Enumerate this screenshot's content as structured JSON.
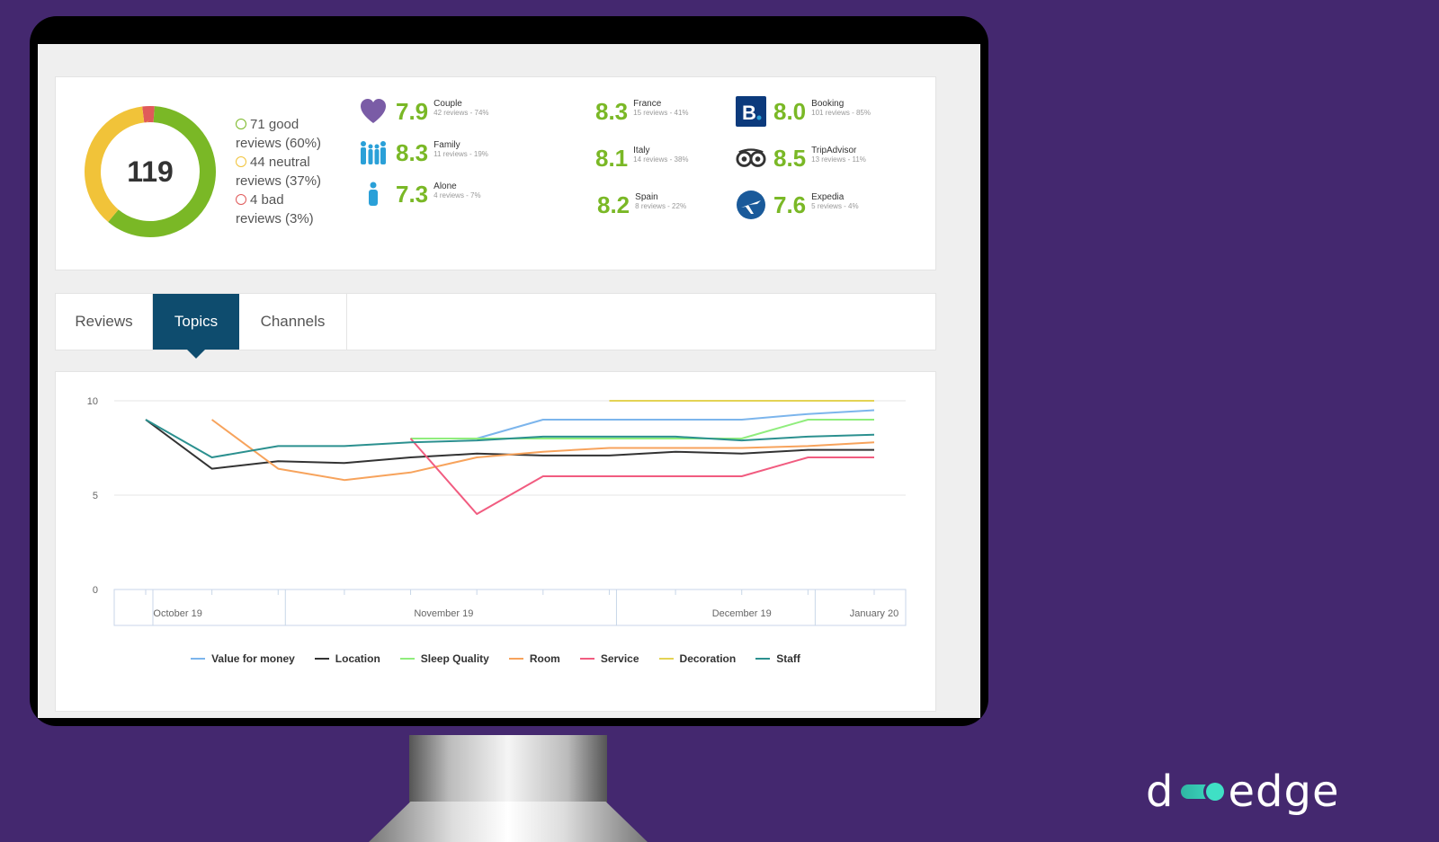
{
  "summary": {
    "total": "119",
    "breakdown": [
      {
        "count": "71",
        "word": "good",
        "rest": "reviews (60%)",
        "kind": "good"
      },
      {
        "count": "44",
        "word": "neutral",
        "rest": "reviews (37%)",
        "kind": "neutral"
      },
      {
        "count": "4",
        "word": "bad",
        "rest": "reviews (3%)",
        "kind": "bad"
      }
    ],
    "donut": {
      "good_pct": 60,
      "neutral_pct": 37,
      "bad_pct": 3,
      "colors": {
        "good": "#7ab826",
        "neutral": "#f1c339",
        "bad": "#e05a5a"
      }
    },
    "segments": [
      {
        "score": "7.9",
        "name": "Couple",
        "sub": "42 reviews - 74%",
        "icon": "heart-icon"
      },
      {
        "score": "8.3",
        "name": "Family",
        "sub": "11 reviews - 19%",
        "icon": "family-icon"
      },
      {
        "score": "7.3",
        "name": "Alone",
        "sub": "4 reviews - 7%",
        "icon": "person-icon"
      }
    ],
    "countries": [
      {
        "score": "8.3",
        "name": "France",
        "sub": "15 reviews - 41%"
      },
      {
        "score": "8.1",
        "name": "Italy",
        "sub": "14 reviews - 38%"
      },
      {
        "score": "8.2",
        "name": "Spain",
        "sub": "8 reviews - 22%"
      }
    ],
    "channels": [
      {
        "score": "8.0",
        "name": "Booking",
        "sub": "101 reviews - 85%",
        "icon": "booking-icon"
      },
      {
        "score": "8.5",
        "name": "TripAdvisor",
        "sub": "13 reviews - 11%",
        "icon": "tripadvisor-icon"
      },
      {
        "score": "7.6",
        "name": "Expedia",
        "sub": "5 reviews - 4%",
        "icon": "expedia-icon"
      }
    ]
  },
  "tabs": [
    {
      "label": "Reviews",
      "active": false
    },
    {
      "label": "Topics",
      "active": true
    },
    {
      "label": "Channels",
      "active": false
    }
  ],
  "chart_data": {
    "type": "line",
    "x": [
      "Oct 5",
      "Oct 15",
      "Oct 25",
      "Nov 4",
      "Nov 14",
      "Nov 24",
      "Dec 4",
      "Dec 14",
      "Dec 24",
      "Jan 3",
      "Jan 13",
      "Jan 23"
    ],
    "x_tick_labels": [
      "October 19",
      "November 19",
      "December 19",
      "January 20"
    ],
    "ylim": [
      0,
      10
    ],
    "yticks": [
      0,
      5,
      10
    ],
    "grid": true,
    "legend": "bottom",
    "series": [
      {
        "name": "Value for money",
        "color": "#7cb5ec",
        "values": [
          null,
          null,
          null,
          null,
          null,
          8,
          9,
          9,
          9,
          9,
          9.3,
          9.5
        ]
      },
      {
        "name": "Location",
        "color": "#333333",
        "values": [
          9,
          6.4,
          6.8,
          6.7,
          7,
          7.2,
          7.1,
          7.1,
          7.3,
          7.2,
          7.4,
          7.4
        ]
      },
      {
        "name": "Sleep Quality",
        "color": "#90ed7d",
        "values": [
          null,
          null,
          null,
          null,
          8,
          8,
          8,
          8,
          8,
          8,
          9,
          9
        ]
      },
      {
        "name": "Room",
        "color": "#f7a35c",
        "values": [
          null,
          9,
          6.4,
          5.8,
          6.2,
          7,
          7.3,
          7.5,
          7.5,
          7.5,
          7.6,
          7.8
        ]
      },
      {
        "name": "Service",
        "color": "#f15c80",
        "values": [
          null,
          null,
          null,
          null,
          8,
          4,
          6,
          6,
          6,
          6,
          7,
          7
        ]
      },
      {
        "name": "Decoration",
        "color": "#e4d354",
        "values": [
          null,
          null,
          null,
          null,
          null,
          null,
          null,
          10,
          10,
          10,
          10,
          10
        ]
      },
      {
        "name": "Staff",
        "color": "#2b908f",
        "values": [
          9,
          7,
          7.6,
          7.6,
          7.8,
          7.9,
          8.1,
          8.1,
          8.1,
          7.9,
          8.1,
          8.2
        ]
      }
    ]
  },
  "brand": {
    "name": "d-edge"
  }
}
